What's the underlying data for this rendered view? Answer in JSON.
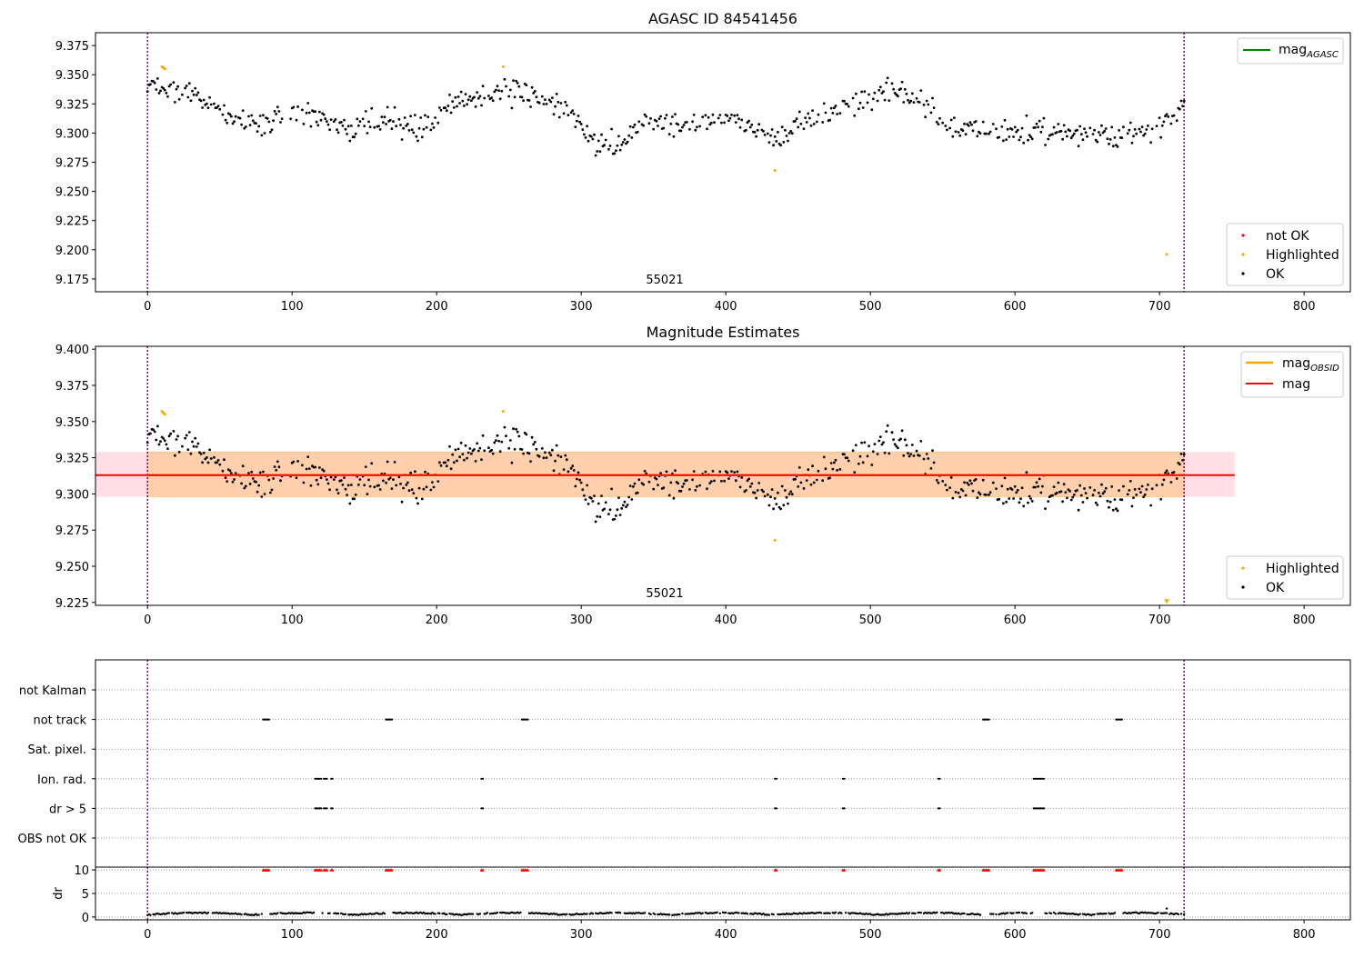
{
  "chart_data": [
    {
      "type": "scatter",
      "title": "AGASC ID 84541456",
      "annotation": "55021",
      "xlim": [
        -36,
        832
      ],
      "ylim": [
        9.164,
        9.386
      ],
      "xticks": [
        0,
        100,
        200,
        300,
        400,
        500,
        600,
        700,
        800
      ],
      "yticks": [
        9.175,
        9.2,
        9.225,
        9.25,
        9.275,
        9.3,
        9.325,
        9.35,
        9.375
      ],
      "vlines": [
        0,
        717
      ],
      "line_legend": [
        {
          "label": "mag",
          "sub": "AGASC",
          "color": "#008000"
        }
      ],
      "marker_legend": [
        {
          "label": "not OK",
          "color": "#ff0000"
        },
        {
          "label": "Highlighted",
          "color": "#ffa500"
        },
        {
          "label": "OK",
          "color": "#000000"
        }
      ],
      "highlighted": [
        [
          10,
          9.357
        ],
        [
          11,
          9.356
        ],
        [
          12,
          9.355
        ],
        [
          246,
          9.357
        ],
        [
          434,
          9.268
        ],
        [
          705,
          9.196
        ]
      ]
    },
    {
      "type": "scatter",
      "title": "Magnitude Estimates",
      "annotation": "55021",
      "xlim": [
        -36,
        832
      ],
      "ylim": [
        9.223,
        9.402
      ],
      "xticks": [
        0,
        100,
        200,
        300,
        400,
        500,
        600,
        700,
        800
      ],
      "yticks": [
        9.225,
        9.25,
        9.275,
        9.3,
        9.325,
        9.35,
        9.375,
        9.4
      ],
      "vlines": [
        0,
        717
      ],
      "mag": 9.313,
      "mag_band": [
        9.298,
        9.329
      ],
      "band_xrange": [
        -36,
        752
      ],
      "line_legend": [
        {
          "label": "mag",
          "sub": "OBSID",
          "color": "#ffa500"
        },
        {
          "label": "mag",
          "sub": "",
          "color": "#ff0000"
        }
      ],
      "marker_legend": [
        {
          "label": "Highlighted",
          "color": "#ffa500"
        },
        {
          "label": "OK",
          "color": "#000000"
        }
      ],
      "highlighted": [
        [
          10,
          9.357
        ],
        [
          11,
          9.356
        ],
        [
          12,
          9.355
        ],
        [
          246,
          9.357
        ],
        [
          434,
          9.268
        ],
        [
          705,
          9.226
        ]
      ]
    },
    {
      "type": "scatter",
      "xlim": [
        -36,
        832
      ],
      "flag_rows": [
        "not Kalman",
        "not track",
        "Sat. pixel.",
        "Ion. rad.",
        "dr > 5",
        "OBS not OK"
      ],
      "flags": {
        "not track": [
          [
            80,
            84
          ],
          [
            165,
            169
          ],
          [
            259,
            263
          ],
          [
            578,
            582
          ],
          [
            670,
            674
          ]
        ],
        "Ion. rad.": [
          [
            116,
            120
          ],
          [
            122,
            124
          ],
          [
            127,
            128
          ],
          [
            231,
            232
          ],
          [
            434,
            435
          ],
          [
            481,
            482
          ],
          [
            547,
            548
          ],
          [
            613,
            620
          ]
        ],
        "dr > 5": [
          [
            116,
            120
          ],
          [
            122,
            124
          ],
          [
            127,
            128
          ],
          [
            231,
            232
          ],
          [
            434,
            435
          ],
          [
            481,
            482
          ],
          [
            547,
            548
          ],
          [
            613,
            620
          ]
        ]
      }
    },
    {
      "type": "scatter",
      "ylabel": "dr",
      "xlim": [
        -36,
        832
      ],
      "ylim": [
        -0.6,
        10.6
      ],
      "xticks": [
        0,
        100,
        200,
        300,
        400,
        500,
        600,
        700,
        800
      ],
      "yticks": [
        0,
        5,
        10
      ],
      "clip_value": 10,
      "outlier": [
        705,
        1.8
      ]
    }
  ]
}
